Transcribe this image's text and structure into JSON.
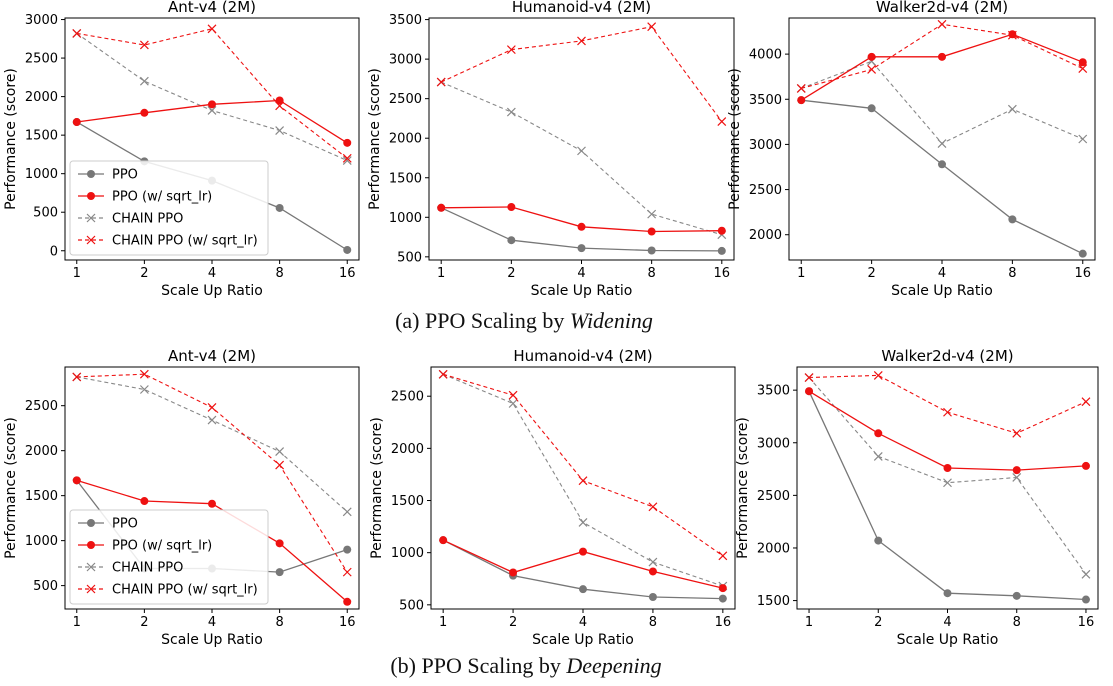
{
  "figure": {
    "caption_a": {
      "prefix": "(a) PPO Scaling by",
      "emph": "Widening"
    },
    "caption_b": {
      "prefix": "(b) PPO Scaling by",
      "emph": "Deepening"
    }
  },
  "styles": {
    "series_colors": {
      "PPO": "#777777",
      "PPO (w/ sqrt_lr)": "#ee1111",
      "CHAIN PPO": "#888888",
      "CHAIN PPO (w/ sqrt_lr)": "#ee1111"
    }
  },
  "chart_data": [
    {
      "id": "widen-ant",
      "row": "a",
      "type": "line",
      "title": "Ant-v4 (2M)",
      "xlabel": "Scale Up Ratio",
      "ylabel": "Performance (score)",
      "categories": [
        "1",
        "2",
        "4",
        "8",
        "16"
      ],
      "ylim": [
        -120,
        3020
      ],
      "yticks": [
        0,
        500,
        1000,
        1500,
        2000,
        2500,
        3000
      ],
      "legend": "lower-left",
      "grid": false,
      "series": [
        {
          "name": "PPO",
          "values": [
            1670,
            1160,
            910,
            555,
            10
          ]
        },
        {
          "name": "PPO (w/ sqrt_lr)",
          "values": [
            1670,
            1790,
            1900,
            1950,
            1400
          ]
        },
        {
          "name": "CHAIN PPO",
          "values": [
            2820,
            2200,
            1820,
            1560,
            1170
          ]
        },
        {
          "name": "CHAIN PPO (w/ sqrt_lr)",
          "values": [
            2820,
            2670,
            2880,
            1880,
            1200
          ]
        }
      ]
    },
    {
      "id": "widen-humanoid",
      "row": "a",
      "type": "line",
      "title": "Humanoid-v4 (2M)",
      "xlabel": "Scale Up Ratio",
      "ylabel": "Performance (score)",
      "categories": [
        "1",
        "2",
        "4",
        "8",
        "16"
      ],
      "ylim": [
        460,
        3520
      ],
      "yticks": [
        500,
        1000,
        1500,
        2000,
        2500,
        3000,
        3500
      ],
      "legend": "none",
      "grid": false,
      "series": [
        {
          "name": "PPO",
          "values": [
            1120,
            710,
            610,
            580,
            575
          ]
        },
        {
          "name": "PPO (w/ sqrt_lr)",
          "values": [
            1120,
            1130,
            880,
            820,
            830
          ]
        },
        {
          "name": "CHAIN PPO",
          "values": [
            2710,
            2330,
            1840,
            1040,
            780
          ]
        },
        {
          "name": "CHAIN PPO (w/ sqrt_lr)",
          "values": [
            2710,
            3120,
            3230,
            3410,
            2210
          ]
        }
      ]
    },
    {
      "id": "widen-walker",
      "row": "a",
      "type": "line",
      "title": "Walker2d-v4 (2M)",
      "xlabel": "Scale Up Ratio",
      "ylabel": "Performance (score)",
      "categories": [
        "1",
        "2",
        "4",
        "8",
        "16"
      ],
      "ylim": [
        1720,
        4400
      ],
      "yticks": [
        2000,
        2500,
        3000,
        3500,
        4000
      ],
      "legend": "none",
      "grid": false,
      "series": [
        {
          "name": "PPO",
          "values": [
            3490,
            3400,
            2780,
            2170,
            1790
          ]
        },
        {
          "name": "PPO (w/ sqrt_lr)",
          "values": [
            3490,
            3970,
            3970,
            4220,
            3910
          ]
        },
        {
          "name": "CHAIN PPO",
          "values": [
            3620,
            3920,
            3010,
            3390,
            3060
          ]
        },
        {
          "name": "CHAIN PPO (w/ sqrt_lr)",
          "values": [
            3620,
            3830,
            4330,
            4210,
            3840
          ]
        }
      ]
    },
    {
      "id": "deepen-ant",
      "row": "b",
      "type": "line",
      "title": "Ant-v4 (2M)",
      "xlabel": "Scale Up Ratio",
      "ylabel": "Performance (score)",
      "categories": [
        "1",
        "2",
        "4",
        "8",
        "16"
      ],
      "ylim": [
        240,
        2930
      ],
      "yticks": [
        500,
        1000,
        1500,
        2000,
        2500
      ],
      "legend": "lower-left",
      "grid": false,
      "series": [
        {
          "name": "PPO",
          "values": [
            1670,
            690,
            690,
            650,
            900
          ]
        },
        {
          "name": "PPO (w/ sqrt_lr)",
          "values": [
            1670,
            1440,
            1410,
            970,
            320
          ]
        },
        {
          "name": "CHAIN PPO",
          "values": [
            2820,
            2680,
            2340,
            1990,
            1320
          ]
        },
        {
          "name": "CHAIN PPO (w/ sqrt_lr)",
          "values": [
            2820,
            2850,
            2480,
            1840,
            650
          ]
        }
      ]
    },
    {
      "id": "deepen-humanoid",
      "row": "b",
      "type": "line",
      "title": "Humanoid-v4 (2M)",
      "xlabel": "Scale Up Ratio",
      "ylabel": "Performance (score)",
      "categories": [
        "1",
        "2",
        "4",
        "8",
        "16"
      ],
      "ylim": [
        460,
        2780
      ],
      "yticks": [
        500,
        1000,
        1500,
        2000,
        2500
      ],
      "legend": "none",
      "grid": false,
      "series": [
        {
          "name": "PPO",
          "values": [
            1120,
            780,
            650,
            575,
            560
          ]
        },
        {
          "name": "PPO (w/ sqrt_lr)",
          "values": [
            1120,
            810,
            1010,
            820,
            660
          ]
        },
        {
          "name": "CHAIN PPO",
          "values": [
            2710,
            2430,
            1290,
            910,
            680
          ]
        },
        {
          "name": "CHAIN PPO (w/ sqrt_lr)",
          "values": [
            2710,
            2510,
            1690,
            1440,
            970
          ]
        }
      ]
    },
    {
      "id": "deepen-walker",
      "row": "b",
      "type": "line",
      "title": "Walker2d-v4 (2M)",
      "xlabel": "Scale Up Ratio",
      "ylabel": "Performance (score)",
      "categories": [
        "1",
        "2",
        "4",
        "8",
        "16"
      ],
      "ylim": [
        1420,
        3720
      ],
      "yticks": [
        1500,
        2000,
        2500,
        3000,
        3500
      ],
      "legend": "none",
      "grid": false,
      "series": [
        {
          "name": "PPO",
          "values": [
            3490,
            2070,
            1570,
            1545,
            1510
          ]
        },
        {
          "name": "PPO (w/ sqrt_lr)",
          "values": [
            3490,
            3090,
            2760,
            2740,
            2780
          ]
        },
        {
          "name": "CHAIN PPO",
          "values": [
            3620,
            2870,
            2620,
            2670,
            1750
          ]
        },
        {
          "name": "CHAIN PPO (w/ sqrt_lr)",
          "values": [
            3620,
            3640,
            3290,
            3090,
            3390
          ]
        }
      ]
    }
  ]
}
